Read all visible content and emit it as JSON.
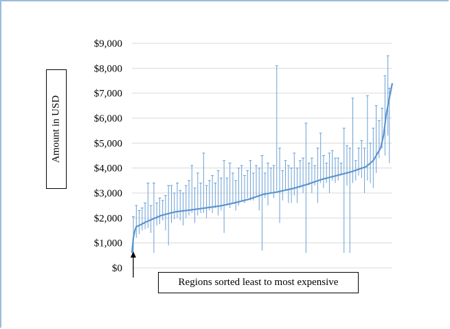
{
  "chart_data": {
    "type": "line",
    "title": "",
    "ylabel": "Amount in USD",
    "xlabel": "",
    "annotation": "Regions sorted least to most expensive",
    "y_tick_labels": [
      "$0",
      "$1,000",
      "$2,000",
      "$3,000",
      "$4,000",
      "$5,000",
      "$6,000",
      "$7,000",
      "$8,000",
      "$9,000"
    ],
    "ylim": [
      0,
      9000
    ],
    "grid": true,
    "colors": {
      "series": "#5b93cf",
      "range_bars": "#6a9fd4",
      "grid": "#d9d9d9"
    },
    "series": [
      {
        "x_description": "Region index (sorted)",
        "y_points": [
          [
            0,
            600
          ],
          [
            1,
            1200
          ],
          [
            2,
            1500
          ],
          [
            3,
            1650
          ],
          [
            5,
            1700
          ],
          [
            10,
            1850
          ],
          [
            20,
            2100
          ],
          [
            30,
            2250
          ],
          [
            40,
            2320
          ],
          [
            50,
            2400
          ],
          [
            60,
            2480
          ],
          [
            70,
            2600
          ],
          [
            80,
            2750
          ],
          [
            90,
            2950
          ],
          [
            100,
            3050
          ],
          [
            110,
            3180
          ],
          [
            120,
            3350
          ],
          [
            130,
            3550
          ],
          [
            140,
            3700
          ],
          [
            150,
            3850
          ],
          [
            160,
            4050
          ],
          [
            165,
            4300
          ],
          [
            170,
            4800
          ],
          [
            172,
            5300
          ],
          [
            174,
            6200
          ],
          [
            176,
            6800
          ],
          [
            178,
            7400
          ]
        ]
      }
    ],
    "range_bars": [
      [
        1,
        500,
        2050
      ],
      [
        3,
        1200,
        2500
      ],
      [
        5,
        1350,
        2300
      ],
      [
        7,
        1500,
        2400
      ],
      [
        9,
        1550,
        2600
      ],
      [
        11,
        1600,
        3400
      ],
      [
        13,
        1400,
        2500
      ],
      [
        15,
        600,
        3400
      ],
      [
        17,
        1700,
        2600
      ],
      [
        19,
        1750,
        2800
      ],
      [
        21,
        1900,
        2700
      ],
      [
        23,
        1500,
        2900
      ],
      [
        25,
        900,
        3300
      ],
      [
        27,
        1800,
        3300
      ],
      [
        29,
        1950,
        3000
      ],
      [
        31,
        2000,
        3400
      ],
      [
        33,
        1900,
        3100
      ],
      [
        35,
        1700,
        3000
      ],
      [
        37,
        2000,
        3300
      ],
      [
        39,
        2100,
        3500
      ],
      [
        41,
        2200,
        4100
      ],
      [
        43,
        1800,
        3200
      ],
      [
        45,
        2100,
        3800
      ],
      [
        47,
        2200,
        3400
      ],
      [
        49,
        2200,
        4600
      ],
      [
        51,
        2000,
        3300
      ],
      [
        53,
        2300,
        3500
      ],
      [
        55,
        2200,
        3700
      ],
      [
        57,
        2400,
        3400
      ],
      [
        59,
        2100,
        3900
      ],
      [
        61,
        2300,
        3600
      ],
      [
        63,
        1400,
        4300
      ],
      [
        65,
        2500,
        3600
      ],
      [
        67,
        2400,
        4200
      ],
      [
        69,
        2600,
        3800
      ],
      [
        71,
        2300,
        3500
      ],
      [
        73,
        2500,
        4000
      ],
      [
        75,
        2700,
        4100
      ],
      [
        77,
        2600,
        3700
      ],
      [
        79,
        2800,
        3900
      ],
      [
        81,
        2700,
        4300
      ],
      [
        83,
        2700,
        3800
      ],
      [
        85,
        2900,
        4100
      ],
      [
        87,
        2300,
        4000
      ],
      [
        89,
        700,
        4500
      ],
      [
        91,
        2800,
        3800
      ],
      [
        93,
        2500,
        4200
      ],
      [
        95,
        3000,
        4000
      ],
      [
        97,
        2800,
        4100
      ],
      [
        99,
        3100,
        8100
      ],
      [
        101,
        1800,
        4800
      ],
      [
        103,
        2700,
        3900
      ],
      [
        105,
        3100,
        4300
      ],
      [
        107,
        2600,
        4100
      ],
      [
        109,
        2600,
        4000
      ],
      [
        111,
        2900,
        4600
      ],
      [
        113,
        2600,
        4000
      ],
      [
        115,
        3200,
        4300
      ],
      [
        117,
        3000,
        4400
      ],
      [
        119,
        600,
        5800
      ],
      [
        121,
        3300,
        4200
      ],
      [
        123,
        3000,
        4400
      ],
      [
        125,
        3300,
        4100
      ],
      [
        127,
        2600,
        4800
      ],
      [
        129,
        3400,
        5400
      ],
      [
        131,
        3200,
        4500
      ],
      [
        133,
        3400,
        4200
      ],
      [
        135,
        3000,
        4600
      ],
      [
        137,
        3500,
        4700
      ],
      [
        139,
        3400,
        4400
      ],
      [
        141,
        3500,
        4400
      ],
      [
        143,
        3700,
        4200
      ],
      [
        145,
        600,
        5600
      ],
      [
        147,
        3300,
        4900
      ],
      [
        149,
        600,
        4800
      ],
      [
        151,
        3400,
        6800
      ],
      [
        153,
        3500,
        4300
      ],
      [
        155,
        3700,
        4800
      ],
      [
        157,
        3600,
        5100
      ],
      [
        159,
        3000,
        4800
      ],
      [
        161,
        3500,
        6900
      ],
      [
        163,
        3400,
        5000
      ],
      [
        165,
        3200,
        5600
      ],
      [
        167,
        3800,
        6500
      ],
      [
        169,
        4400,
        5900
      ],
      [
        171,
        4800,
        6400
      ],
      [
        173,
        4500,
        7700
      ],
      [
        175,
        5300,
        8500
      ],
      [
        176,
        4200,
        7200
      ]
    ]
  }
}
